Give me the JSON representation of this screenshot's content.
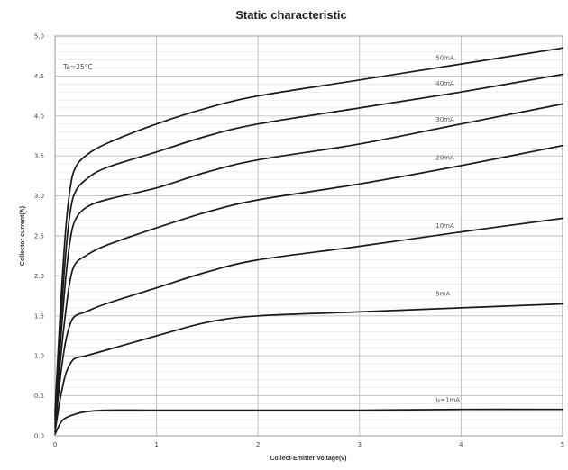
{
  "chart_data": {
    "type": "line",
    "title": "Static characteristic",
    "xlabel": "Collect-Emitter Voltage(v)",
    "ylabel": "Collector current(A)",
    "annotation": "Ta=25°C",
    "xlim": [
      0,
      5
    ],
    "ylim": [
      0,
      5
    ],
    "x_ticks": [
      "0",
      "1",
      "2",
      "3",
      "4",
      "5"
    ],
    "y_ticks": [
      "0.0",
      "0.5",
      "1.0",
      "1.5",
      "2.0",
      "2.5",
      "3.0",
      "3.5",
      "4.0",
      "4.5",
      "5.0"
    ],
    "grid": true,
    "series": [
      {
        "name": "50mA",
        "label_at": [
          3.75,
          4.7
        ],
        "points": [
          [
            0,
            0.3
          ],
          [
            0.05,
            1.5
          ],
          [
            0.1,
            2.5
          ],
          [
            0.15,
            3.1
          ],
          [
            0.2,
            3.35
          ],
          [
            0.3,
            3.5
          ],
          [
            0.5,
            3.65
          ],
          [
            1,
            3.9
          ],
          [
            1.5,
            4.1
          ],
          [
            2,
            4.25
          ],
          [
            3,
            4.45
          ],
          [
            4,
            4.65
          ],
          [
            5,
            4.85
          ]
        ]
      },
      {
        "name": "40mA",
        "label_at": [
          3.75,
          4.38
        ],
        "points": [
          [
            0,
            0.25
          ],
          [
            0.05,
            1.3
          ],
          [
            0.1,
            2.2
          ],
          [
            0.15,
            2.8
          ],
          [
            0.2,
            3.05
          ],
          [
            0.3,
            3.2
          ],
          [
            0.5,
            3.35
          ],
          [
            1,
            3.55
          ],
          [
            1.5,
            3.75
          ],
          [
            2,
            3.9
          ],
          [
            3,
            4.1
          ],
          [
            4,
            4.3
          ],
          [
            5,
            4.52
          ]
        ]
      },
      {
        "name": "30mA",
        "label_at": [
          3.75,
          3.93
        ],
        "points": [
          [
            0,
            0.2
          ],
          [
            0.05,
            1.1
          ],
          [
            0.1,
            1.9
          ],
          [
            0.15,
            2.45
          ],
          [
            0.2,
            2.7
          ],
          [
            0.3,
            2.85
          ],
          [
            0.5,
            2.95
          ],
          [
            1,
            3.1
          ],
          [
            1.5,
            3.3
          ],
          [
            2,
            3.45
          ],
          [
            3,
            3.65
          ],
          [
            4,
            3.9
          ],
          [
            5,
            4.15
          ]
        ]
      },
      {
        "name": "20mA",
        "label_at": [
          3.75,
          3.45
        ],
        "points": [
          [
            0,
            0.15
          ],
          [
            0.05,
            0.9
          ],
          [
            0.1,
            1.5
          ],
          [
            0.15,
            1.95
          ],
          [
            0.2,
            2.15
          ],
          [
            0.3,
            2.25
          ],
          [
            0.5,
            2.38
          ],
          [
            1,
            2.6
          ],
          [
            1.5,
            2.8
          ],
          [
            2,
            2.95
          ],
          [
            3,
            3.15
          ],
          [
            4,
            3.38
          ],
          [
            5,
            3.63
          ]
        ]
      },
      {
        "name": "10mA",
        "label_at": [
          3.75,
          2.6
        ],
        "points": [
          [
            0,
            0.1
          ],
          [
            0.05,
            0.7
          ],
          [
            0.1,
            1.15
          ],
          [
            0.15,
            1.4
          ],
          [
            0.2,
            1.5
          ],
          [
            0.3,
            1.55
          ],
          [
            0.5,
            1.65
          ],
          [
            1,
            1.85
          ],
          [
            1.5,
            2.05
          ],
          [
            2,
            2.2
          ],
          [
            3,
            2.37
          ],
          [
            4,
            2.55
          ],
          [
            5,
            2.72
          ]
        ]
      },
      {
        "name": "5mA",
        "label_at": [
          3.75,
          1.75
        ],
        "points": [
          [
            0,
            0.05
          ],
          [
            0.05,
            0.45
          ],
          [
            0.1,
            0.75
          ],
          [
            0.15,
            0.9
          ],
          [
            0.2,
            0.97
          ],
          [
            0.3,
            1.0
          ],
          [
            0.5,
            1.07
          ],
          [
            1,
            1.25
          ],
          [
            1.5,
            1.42
          ],
          [
            2,
            1.5
          ],
          [
            3,
            1.55
          ],
          [
            4,
            1.6
          ],
          [
            5,
            1.65
          ]
        ]
      },
      {
        "name": "Iᵦ=1mA",
        "label_at": [
          3.75,
          0.42
        ],
        "points": [
          [
            0,
            0.02
          ],
          [
            0.05,
            0.15
          ],
          [
            0.1,
            0.22
          ],
          [
            0.2,
            0.27
          ],
          [
            0.3,
            0.3
          ],
          [
            0.5,
            0.32
          ],
          [
            1,
            0.32
          ],
          [
            2,
            0.32
          ],
          [
            3,
            0.32
          ],
          [
            4,
            0.33
          ],
          [
            5,
            0.33
          ]
        ]
      }
    ]
  }
}
